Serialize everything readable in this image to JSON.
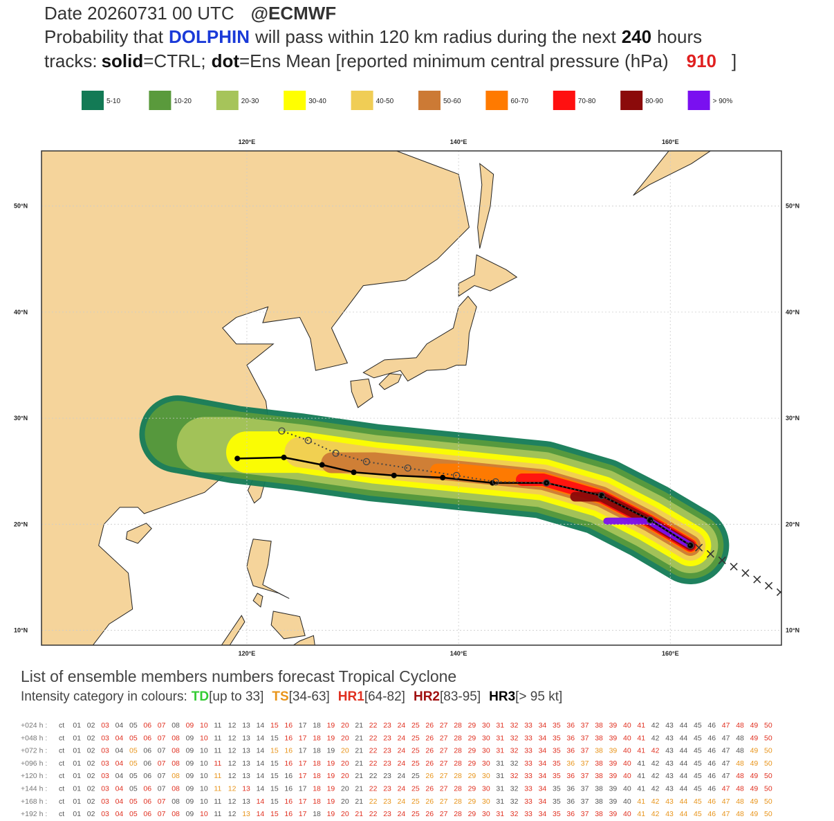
{
  "header": {
    "date": "Date 20260731 00 UTC",
    "source": "@ECMWF",
    "line2": [
      "Probability that",
      "DOLPHIN",
      "will pass within 120 km radius during the next",
      "240",
      "hours"
    ],
    "line3": [
      "tracks:",
      "solid",
      "=CTRL;",
      "dot",
      "=Ens Mean [reported minimum central pressure (hPa)",
      "910",
      "]"
    ]
  },
  "legend": {
    "items": [
      {
        "label": "5-10",
        "color": "#137a55"
      },
      {
        "label": "10-20",
        "color": "#5a9a3c"
      },
      {
        "label": "20-30",
        "color": "#a6c45a"
      },
      {
        "label": "30-40",
        "color": "#ffff00"
      },
      {
        "label": "40-50",
        "color": "#f0cd55"
      },
      {
        "label": "50-60",
        "color": "#cc7a35"
      },
      {
        "label": "60-70",
        "color": "#ff7a00"
      },
      {
        "label": "70-80",
        "color": "#ff1010"
      },
      {
        "label": "80-90",
        "color": "#8b0a0a"
      },
      {
        "label": "> 90%",
        "color": "#7a10f0"
      }
    ]
  },
  "chart_data": {
    "type": "map",
    "xlim": [
      100.6,
      170.5
    ],
    "ylim": [
      8.6,
      55.2
    ],
    "xticks": [
      {
        "value": 120,
        "label": "120°E"
      },
      {
        "value": 140,
        "label": "140°E"
      },
      {
        "value": 160,
        "label": "160°E"
      }
    ],
    "yticks": [
      {
        "value": 10,
        "label": "10°N"
      },
      {
        "value": 20,
        "label": "20°N"
      },
      {
        "value": 30,
        "label": "30°N"
      },
      {
        "value": 40,
        "label": "40°N"
      },
      {
        "value": 50,
        "label": "50°N"
      }
    ],
    "grid": true,
    "land_color": "#f5d49b",
    "series": [
      {
        "name": "CTRL",
        "color": "#000000",
        "style": "solid",
        "x": [
          161.9,
          158.1,
          153.5,
          148.3,
          143.2,
          138.5,
          133.9,
          130.1,
          127.1,
          123.5,
          119.1
        ],
        "y": [
          18.0,
          20.4,
          22.7,
          23.9,
          23.9,
          24.4,
          24.6,
          24.9,
          25.6,
          26.3,
          26.2
        ]
      },
      {
        "name": "Ens Mean",
        "color": "#444444",
        "style": "dot",
        "x": [
          161.9,
          158.1,
          153.5,
          148.3,
          143.5,
          139.8,
          135.2,
          131.3,
          128.4,
          125.8,
          123.3
        ],
        "y": [
          18.0,
          20.4,
          22.7,
          23.9,
          24.0,
          24.6,
          25.3,
          25.9,
          26.7,
          27.9,
          28.8
        ]
      },
      {
        "name": "Observed",
        "color": "#333333",
        "style": "cross",
        "x": [
          162.7,
          163.8,
          164.9,
          166.0,
          167.1,
          168.2,
          169.3,
          170.4
        ],
        "y": [
          17.8,
          17.2,
          16.6,
          16.0,
          15.4,
          14.8,
          14.2,
          13.6
        ]
      }
    ]
  },
  "ensemble": {
    "title": "List of ensemble members numbers forecast Tropical Cyclone",
    "intensity_label": "Intensity category in colours:",
    "default_color": "#555555",
    "categories": [
      {
        "name": "TD",
        "range": "[up to 33]",
        "color": "#33cc33"
      },
      {
        "name": "TS",
        "range": "[34-63]",
        "color": "#e8941a"
      },
      {
        "name": "HR1",
        "range": "[64-82]",
        "color": "#e03020"
      },
      {
        "name": "HR2",
        "range": "[83-95]",
        "color": "#a01010"
      },
      {
        "name": "HR3",
        "range": "[> 95 kt]",
        "color": "#000000"
      }
    ],
    "members": [
      "ct",
      "01",
      "02",
      "03",
      "04",
      "05",
      "06",
      "07",
      "08",
      "09",
      "10",
      "11",
      "12",
      "13",
      "14",
      "15",
      "16",
      "17",
      "18",
      "19",
      "20",
      "21",
      "22",
      "23",
      "24",
      "25",
      "26",
      "27",
      "28",
      "29",
      "30",
      "31",
      "32",
      "33",
      "34",
      "35",
      "36",
      "37",
      "38",
      "39",
      "40",
      "41",
      "42",
      "43",
      "44",
      "45",
      "46",
      "47",
      "48",
      "49",
      "50"
    ],
    "rows": [
      {
        "lead": "+024 h :",
        "codes": "000300330330000330033033333333333333333333000003333"
      },
      {
        "lead": "+048 h :",
        "codes": "000333333030000033333033333333333333333333000000033"
      },
      {
        "lead": "+072 h :",
        "codes": "000302003000000220002033333333333333332233300000022"
      },
      {
        "lead": "+096 h :",
        "codes": "000332033003000033333033333333300333223330000000222"
      },
      {
        "lead": "+120 h :",
        "codes": "000300002002000003333000002222203333333330000000333"
      },
      {
        "lead": "+144 h :",
        "codes": "000330303002230000330033333333300330000000000003333"
      },
      {
        "lead": "+168 h :",
        "codes": "000333330000003033330022222222200330000002222222222"
      },
      {
        "lead": "+192 h :",
        "codes": "000333333030023333033333333333333333333332222222222"
      }
    ]
  }
}
